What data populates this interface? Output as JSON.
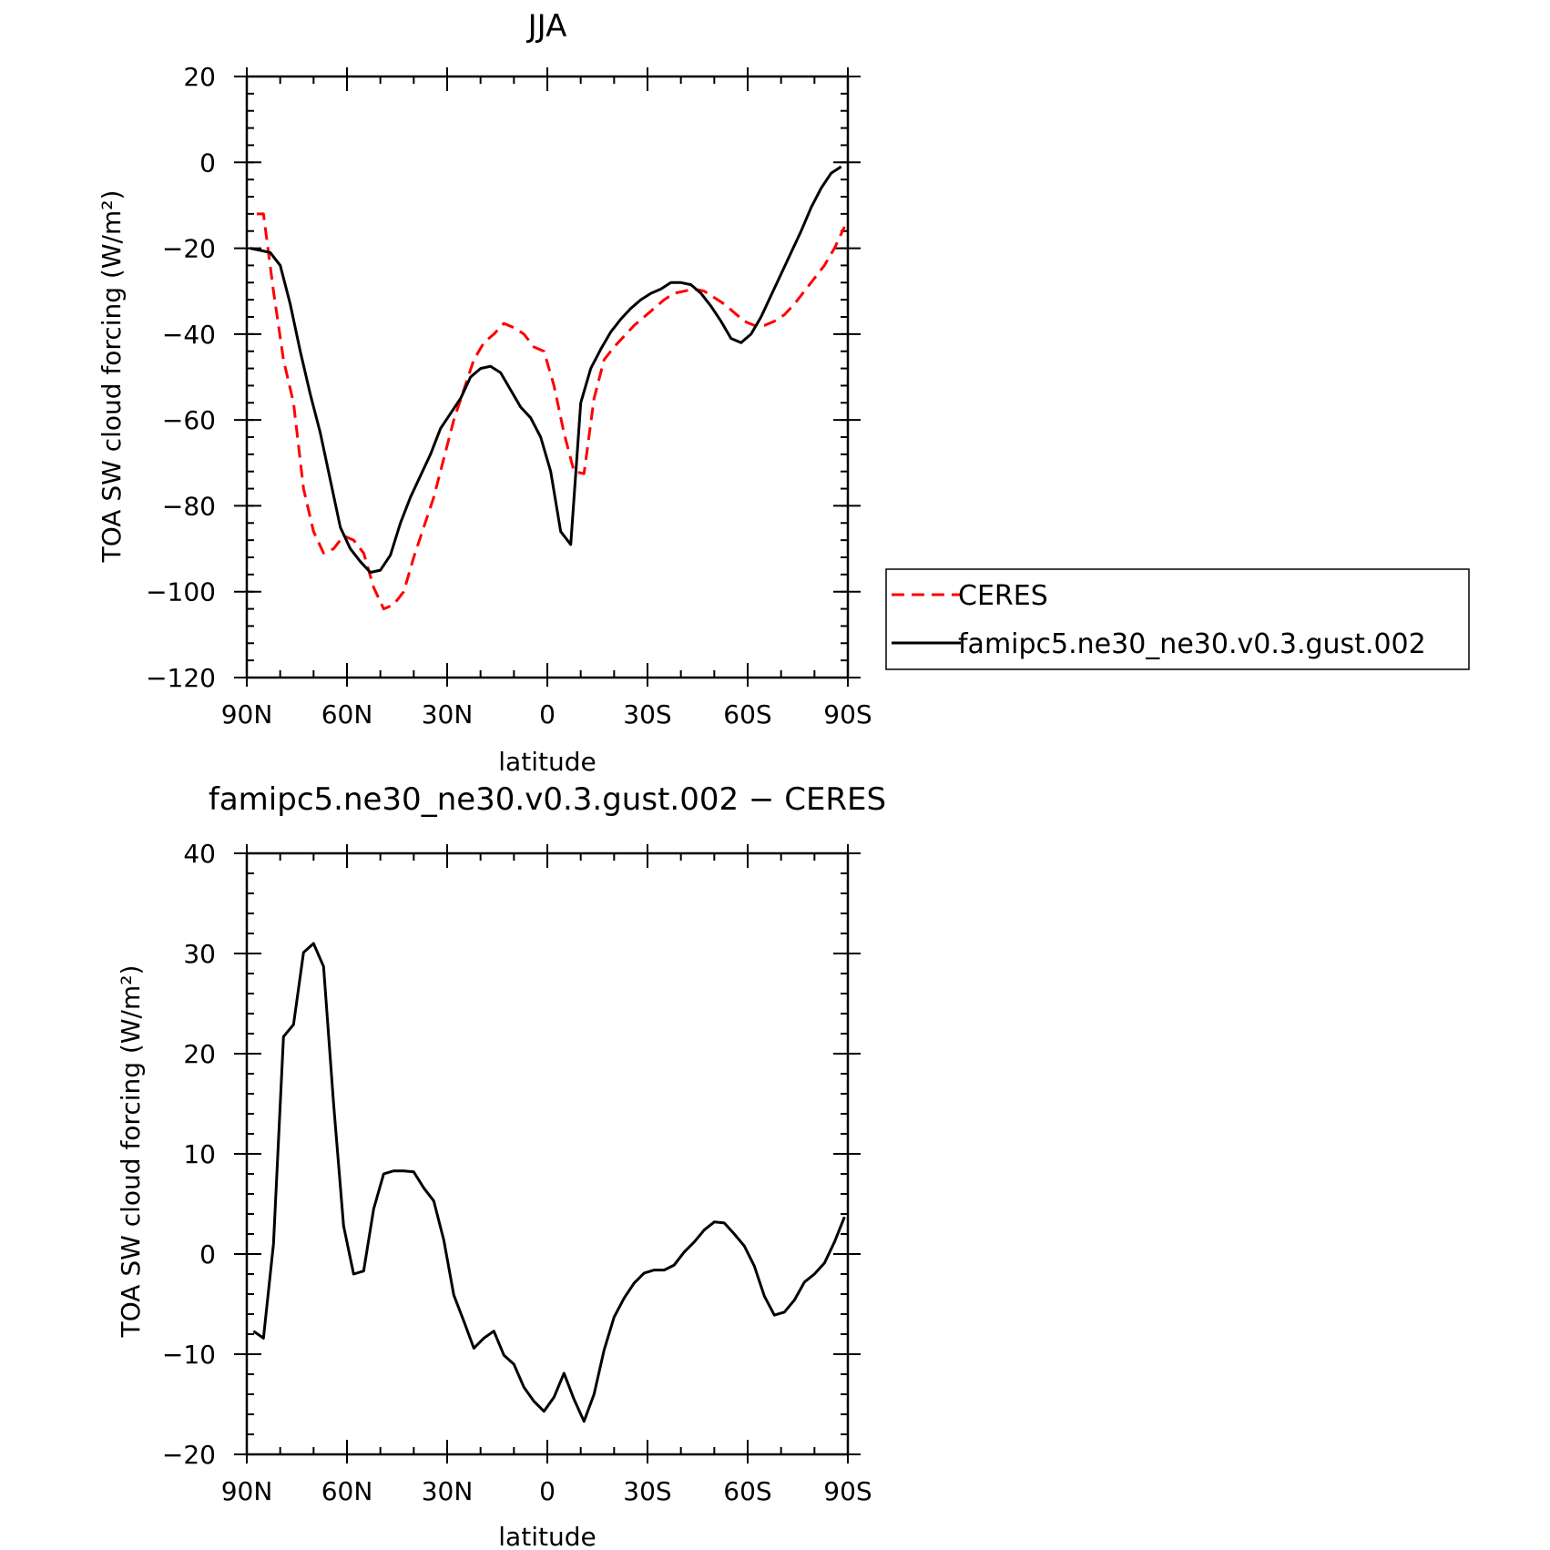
{
  "chart_data": [
    {
      "type": "line",
      "title": "JJA",
      "xlabel": "latitude",
      "ylabel": "TOA SW cloud forcing (W/m²)",
      "xlim": [
        90,
        -90
      ],
      "ylim": [
        -120,
        20
      ],
      "xticks": [
        90,
        60,
        30,
        0,
        -30,
        -60,
        -90
      ],
      "xtick_labels": [
        "90N",
        "60N",
        "30N",
        "0",
        "30S",
        "60S",
        "90S"
      ],
      "yticks": [
        20,
        0,
        -20,
        -40,
        -60,
        -80,
        -100,
        -120
      ],
      "ytick_labels": [
        "20",
        "0",
        "−20",
        "−40",
        "−60",
        "−80",
        "−100",
        "−120"
      ],
      "legend": "outside-right",
      "grid": false,
      "series": [
        {
          "name": "CERES",
          "color": "#ff0000",
          "dash": "dashed",
          "x": [
            87,
            85,
            82,
            79,
            76,
            73,
            70,
            67,
            64,
            61,
            58,
            55,
            52,
            49,
            46,
            43,
            40,
            37,
            34,
            31,
            28,
            25,
            22,
            19,
            16,
            13,
            10,
            7,
            4,
            1,
            -2,
            -5,
            -8,
            -11,
            -14,
            -17,
            -20,
            -23,
            -26,
            -29,
            -32,
            -35,
            -38,
            -41,
            -44,
            -47,
            -50,
            -53,
            -56,
            -59,
            -62,
            -65,
            -68,
            -71,
            -74,
            -77,
            -80,
            -83,
            -86,
            -89
          ],
          "y": [
            -12,
            -12,
            -30,
            -46,
            -56,
            -76,
            -86,
            -91,
            -90,
            -87,
            -88,
            -91,
            -99,
            -104,
            -103,
            -100,
            -92,
            -85,
            -78,
            -69,
            -60,
            -53,
            -46,
            -42,
            -40,
            -37.5,
            -38.5,
            -40,
            -43,
            -44,
            -52,
            -63,
            -72,
            -72.5,
            -55,
            -46,
            -43,
            -40.5,
            -38,
            -36,
            -34,
            -32,
            -30.5,
            -30,
            -29.5,
            -30,
            -31.5,
            -33,
            -35,
            -37,
            -38,
            -38,
            -37,
            -35.5,
            -33,
            -30,
            -27,
            -24,
            -20,
            -15
          ]
        },
        {
          "name": "famipc5.ne30_ne30.v0.3.gust.002",
          "color": "#000000",
          "dash": "solid",
          "x": [
            89,
            86,
            83,
            80,
            77,
            74,
            71,
            68,
            65,
            62,
            59,
            56,
            53,
            50,
            47,
            44,
            41,
            38,
            35,
            32,
            29,
            26,
            23,
            20,
            17,
            14,
            11,
            8,
            5,
            2,
            -1,
            -4,
            -7,
            -10,
            -13,
            -16,
            -19,
            -22,
            -25,
            -28,
            -31,
            -34,
            -37,
            -40,
            -43,
            -46,
            -49,
            -52,
            -55,
            -58,
            -61,
            -64,
            -67,
            -70,
            -73,
            -76,
            -79,
            -82,
            -85,
            -88
          ],
          "y": [
            -20,
            -20.5,
            -21,
            -24,
            -33,
            -44,
            -54,
            -63,
            -74,
            -85,
            -90,
            -93,
            -95.5,
            -95,
            -91.5,
            -84,
            -78,
            -73,
            -68,
            -62,
            -58.5,
            -55,
            -50,
            -48,
            -47.5,
            -49,
            -53,
            -57,
            -59.5,
            -64,
            -72,
            -86,
            -89,
            -56,
            -48,
            -43.5,
            -39.5,
            -36.5,
            -34,
            -32,
            -30.5,
            -29.5,
            -28,
            -28,
            -28.5,
            -30.5,
            -33.5,
            -37,
            -41,
            -42,
            -40,
            -36,
            -31,
            -26,
            -21,
            -16,
            -10.5,
            -6,
            -2.5,
            -1
          ]
        }
      ]
    },
    {
      "type": "line",
      "title": "famipc5.ne30_ne30.v0.3.gust.002 − CERES",
      "xlabel": "latitude",
      "ylabel": "TOA SW cloud forcing (W/m²)",
      "xlim": [
        90,
        -90
      ],
      "ylim": [
        -20,
        40
      ],
      "xticks": [
        90,
        60,
        30,
        0,
        -30,
        -60,
        -90
      ],
      "xtick_labels": [
        "90N",
        "60N",
        "30N",
        "0",
        "30S",
        "60S",
        "90S"
      ],
      "yticks": [
        40,
        30,
        20,
        10,
        0,
        -10,
        -20
      ],
      "ytick_labels": [
        "40",
        "30",
        "20",
        "10",
        "0",
        "−10",
        "−20"
      ],
      "grid": false,
      "series": [
        {
          "color": "#000000",
          "dash": "solid",
          "x": [
            88,
            85,
            82,
            79,
            76,
            73,
            70,
            67,
            64,
            61,
            58,
            55,
            52,
            49,
            46,
            43,
            40,
            37,
            34,
            31,
            28,
            25,
            22,
            19,
            16,
            13,
            10,
            7,
            4,
            1,
            -2,
            -5,
            -8,
            -11,
            -14,
            -17,
            -20,
            -23,
            -26,
            -29,
            -32,
            -35,
            -38,
            -41,
            -44,
            -47,
            -50,
            -53,
            -56,
            -59,
            -62,
            -65,
            -68,
            -71,
            -74,
            -77,
            -80,
            -83,
            -86,
            -89
          ],
          "y": [
            -7.7,
            -8.4,
            1,
            21.7,
            22.9,
            30.1,
            31,
            28.7,
            15,
            2.8,
            -2,
            -1.7,
            4.5,
            8,
            8.3,
            8.3,
            8.2,
            6.6,
            5.3,
            1.4,
            -4.1,
            -6.7,
            -9.4,
            -8.4,
            -7.7,
            -10.1,
            -11,
            -13.3,
            -14.7,
            -15.7,
            -14.3,
            -11.9,
            -14.5,
            -16.7,
            -14,
            -9.6,
            -6.3,
            -4.4,
            -2.9,
            -1.9,
            -1.6,
            -1.6,
            -1.1,
            0.2,
            1.2,
            2.4,
            3.2,
            3.1,
            2,
            0.8,
            -1.2,
            -4.2,
            -6.1,
            -5.8,
            -4.6,
            -2.8,
            -2,
            -0.9,
            1.2,
            3.7
          ]
        }
      ]
    }
  ]
}
